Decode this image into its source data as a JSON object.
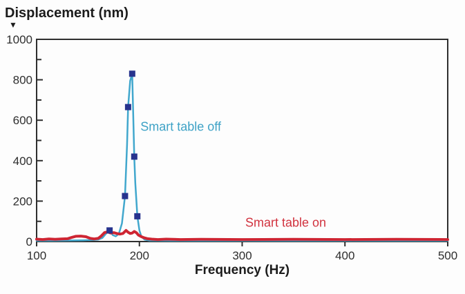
{
  "icons": {
    "y_axis_pointer": "▼"
  },
  "chart_data": {
    "type": "line",
    "title": "Displacement (nm)",
    "xlabel": "Frequency (Hz)",
    "ylabel": "Displacement (nm)",
    "xlim": [
      100,
      500
    ],
    "ylim": [
      0,
      1000
    ],
    "x_ticks": [
      100,
      200,
      300,
      400,
      500
    ],
    "y_ticks": [
      0,
      200,
      400,
      600,
      800,
      1000
    ],
    "y_minor_ticks": [
      100,
      300,
      500,
      700,
      900
    ],
    "grid": false,
    "legend_position": "inline-annotations",
    "background": "#fdfdfd",
    "axis_color": "#2e2e2e",
    "series": [
      {
        "name": "Smart table off",
        "type": "line",
        "color": "#41a7cd",
        "line_width": 2.5,
        "marker": "square",
        "marker_color": "#27338e",
        "marker_size": 9,
        "points": [
          [
            100,
            4
          ],
          [
            115,
            4
          ],
          [
            130,
            5
          ],
          [
            145,
            6
          ],
          [
            155,
            8
          ],
          [
            160,
            10
          ],
          [
            164,
            18
          ],
          [
            168,
            42
          ],
          [
            171,
            55
          ],
          [
            174,
            32
          ],
          [
            177,
            26
          ],
          [
            180,
            38
          ],
          [
            183,
            90
          ],
          [
            186,
            225
          ],
          [
            188,
            480
          ],
          [
            189,
            665
          ],
          [
            191,
            795
          ],
          [
            193,
            830
          ],
          [
            194,
            630
          ],
          [
            195,
            420
          ],
          [
            196,
            290
          ],
          [
            198,
            125
          ],
          [
            200,
            55
          ],
          [
            202,
            24
          ],
          [
            205,
            10
          ],
          [
            210,
            5
          ],
          [
            230,
            4
          ],
          [
            300,
            4
          ],
          [
            400,
            4
          ],
          [
            500,
            4
          ]
        ],
        "marker_points": [
          [
            171,
            55
          ],
          [
            186,
            225
          ],
          [
            189,
            665
          ],
          [
            193,
            830
          ],
          [
            195,
            420
          ],
          [
            198,
            125
          ]
        ]
      },
      {
        "name": "Smart table on",
        "type": "line",
        "color": "#ce2533",
        "line_width": 4,
        "marker": "none",
        "points": [
          [
            100,
            12
          ],
          [
            106,
            10
          ],
          [
            112,
            13
          ],
          [
            118,
            11
          ],
          [
            124,
            13
          ],
          [
            130,
            14
          ],
          [
            134,
            20
          ],
          [
            138,
            26
          ],
          [
            143,
            27
          ],
          [
            148,
            24
          ],
          [
            152,
            16
          ],
          [
            156,
            13
          ],
          [
            160,
            16
          ],
          [
            163,
            28
          ],
          [
            166,
            44
          ],
          [
            169,
            48
          ],
          [
            172,
            42
          ],
          [
            175,
            44
          ],
          [
            178,
            40
          ],
          [
            181,
            37
          ],
          [
            184,
            40
          ],
          [
            187,
            55
          ],
          [
            189,
            46
          ],
          [
            191,
            40
          ],
          [
            193,
            42
          ],
          [
            195,
            50
          ],
          [
            197,
            44
          ],
          [
            199,
            32
          ],
          [
            202,
            24
          ],
          [
            205,
            18
          ],
          [
            208,
            14
          ],
          [
            212,
            12
          ],
          [
            218,
            10
          ],
          [
            226,
            12
          ],
          [
            240,
            10
          ],
          [
            260,
            11
          ],
          [
            300,
            10
          ],
          [
            350,
            11
          ],
          [
            400,
            10
          ],
          [
            450,
            11
          ],
          [
            500,
            10
          ]
        ]
      }
    ],
    "annotations": [
      {
        "text": "Smart table off",
        "x": 201,
        "y": 565,
        "color": "#3ea2c6",
        "align": "left"
      },
      {
        "text": "Smart table on",
        "x": 303,
        "y": 92,
        "color": "#d1323e",
        "align": "left"
      }
    ]
  }
}
